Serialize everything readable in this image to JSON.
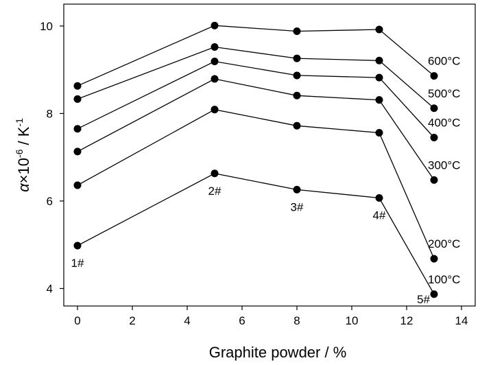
{
  "chart_data": {
    "type": "line",
    "xlabel": "Graphite powder / %",
    "ylabel": {
      "symbol": "α",
      "times": "×10",
      "exp": "-6",
      "unit_sep": " / K",
      "unit_exp": "-1"
    },
    "xlim": [
      -0.5,
      14.5
    ],
    "ylim": [
      3.6,
      10.5
    ],
    "xticks": [
      0,
      2,
      4,
      6,
      8,
      10,
      12,
      14
    ],
    "yticks": [
      4,
      6,
      8,
      10
    ],
    "grid": false,
    "legend": "none",
    "x": [
      0,
      5,
      8,
      11,
      13
    ],
    "series": [
      {
        "name": "100°C",
        "values": [
          4.98,
          6.63,
          6.26,
          6.07,
          3.87
        ]
      },
      {
        "name": "200°C",
        "values": [
          6.36,
          8.09,
          7.72,
          7.56,
          4.68
        ]
      },
      {
        "name": "300°C",
        "values": [
          7.13,
          8.79,
          8.41,
          8.31,
          6.48
        ]
      },
      {
        "name": "400°C",
        "values": [
          7.65,
          9.19,
          8.87,
          8.82,
          7.45
        ]
      },
      {
        "name": "500°C",
        "values": [
          8.33,
          9.52,
          9.26,
          9.21,
          8.12
        ]
      },
      {
        "name": "600°C",
        "values": [
          8.63,
          10.01,
          9.88,
          9.92,
          8.86
        ]
      }
    ],
    "sample_labels": [
      {
        "text": "1#",
        "x": 0,
        "y": 4.98
      },
      {
        "text": "2#",
        "x": 5,
        "y": 6.63
      },
      {
        "text": "3#",
        "x": 8,
        "y": 6.26
      },
      {
        "text": "4#",
        "x": 11,
        "y": 6.07
      },
      {
        "text": "5#",
        "x": 13,
        "y": 3.87
      }
    ],
    "marker_color": "#000000",
    "line_color": "#000000"
  }
}
